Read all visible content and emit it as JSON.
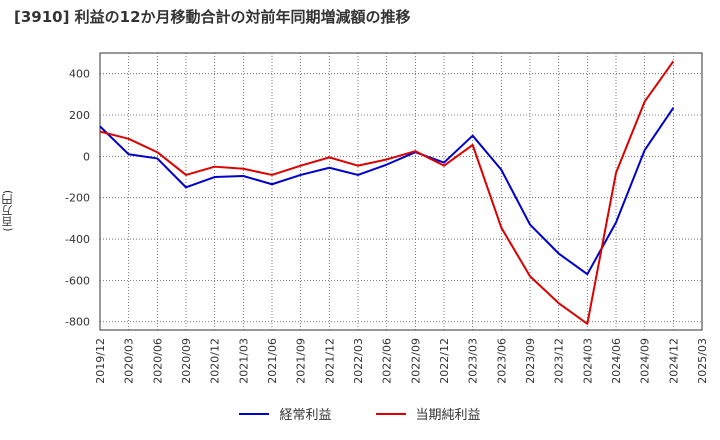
{
  "chart_data": {
    "type": "line",
    "title": "[3910]  利益の12か月移動合計の対前年同期増減額の推移",
    "ylabel": "(百万円)",
    "xlabel": "",
    "ylim": [
      -840,
      500
    ],
    "yticks": [
      400,
      200,
      0,
      -200,
      -400,
      -600,
      -800
    ],
    "grid": true,
    "categories": [
      "2019/12",
      "2020/03",
      "2020/06",
      "2020/09",
      "2020/12",
      "2021/03",
      "2021/06",
      "2021/09",
      "2021/12",
      "2022/03",
      "2022/06",
      "2022/09",
      "2022/12",
      "2023/03",
      "2023/06",
      "2023/09",
      "2023/12",
      "2024/03",
      "2024/06",
      "2024/09",
      "2024/12",
      "2025/03"
    ],
    "series": [
      {
        "name": "経常利益",
        "color": "#0000cc",
        "values": [
          145,
          10,
          -10,
          -150,
          -100,
          -95,
          -135,
          -90,
          -55,
          -90,
          -40,
          20,
          -30,
          100,
          -65,
          -330,
          -470,
          -570,
          -320,
          30,
          235,
          null
        ]
      },
      {
        "name": "当期純利益",
        "color": "#dd0000",
        "values": [
          120,
          85,
          20,
          -90,
          -50,
          -60,
          -90,
          -45,
          -5,
          -45,
          -15,
          25,
          -45,
          55,
          -345,
          -580,
          -710,
          -810,
          -80,
          265,
          460,
          null
        ]
      }
    ],
    "legend_position": "bottom"
  }
}
